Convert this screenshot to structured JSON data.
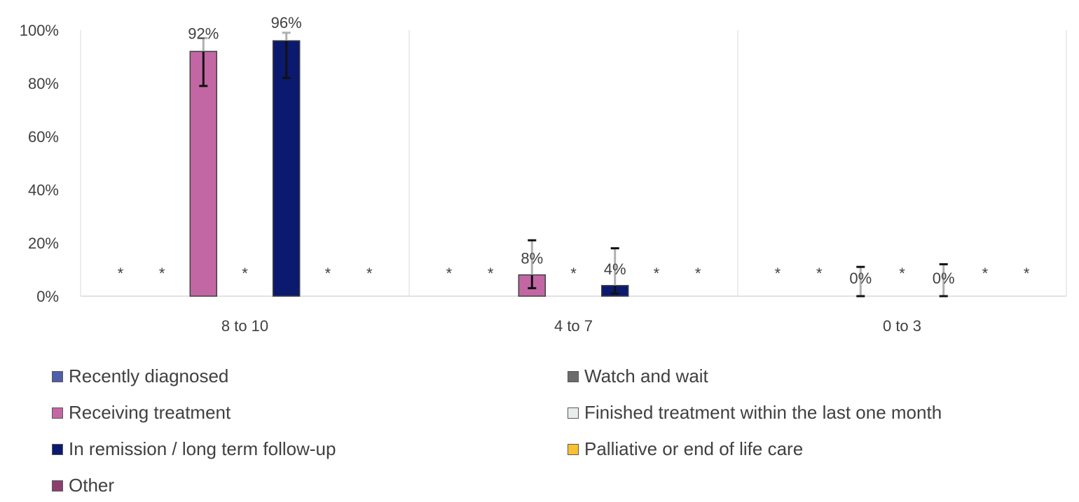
{
  "chart_data": {
    "type": "bar",
    "title": "",
    "xlabel": "",
    "ylabel": "",
    "ylim": [
      0,
      100
    ],
    "yticks": [
      "0%",
      "20%",
      "40%",
      "60%",
      "80%",
      "100%"
    ],
    "categories": [
      "8 to 10",
      "4 to 7",
      "0 to 3"
    ],
    "suppressed_marker": "*",
    "series": [
      {
        "name": "Recently diagnosed",
        "color": "#4e5ea8",
        "values": [
          null,
          null,
          null
        ]
      },
      {
        "name": "Watch and wait",
        "color": "#6b6b6b",
        "values": [
          null,
          null,
          null
        ]
      },
      {
        "name": "Receiving treatment",
        "color": "#c267a3",
        "values": [
          92,
          8,
          0
        ],
        "labels": [
          "92%",
          "8%",
          "0%"
        ],
        "error_low": [
          79,
          3,
          0
        ],
        "error_high": [
          97,
          21,
          11
        ]
      },
      {
        "name": "Finished treatment within the last one month",
        "color": "#e8ecea",
        "values": [
          null,
          null,
          null
        ]
      },
      {
        "name": "In remission / long term follow-up",
        "color": "#0b1a6e",
        "values": [
          96,
          4,
          0
        ],
        "labels": [
          "96%",
          "4%",
          "0%"
        ],
        "error_low": [
          82,
          1,
          0
        ],
        "error_high": [
          99,
          18,
          12
        ]
      },
      {
        "name": "Palliative or end of life care",
        "color": "#f7c132",
        "values": [
          null,
          null,
          null
        ]
      },
      {
        "name": "Other",
        "color": "#8c3f6e",
        "values": [
          null,
          null,
          null
        ]
      }
    ],
    "legend_position": "bottom",
    "grid": false
  }
}
